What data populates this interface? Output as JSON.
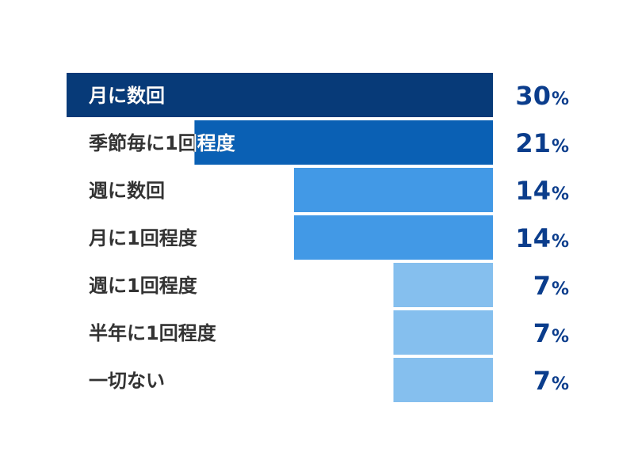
{
  "chart_data": {
    "type": "bar",
    "orientation": "horizontal",
    "categories": [
      "月に数回",
      "季節毎に1回程度",
      "週に数回",
      "月に1回程度",
      "週に1回程度",
      "半年に1回程度",
      "一切ない"
    ],
    "values": [
      30,
      21,
      14,
      14,
      7,
      7,
      7
    ],
    "value_suffix": "%",
    "xlim": [
      0,
      30
    ],
    "grid": false,
    "bar_colors": [
      "#073a78",
      "#0a60b4",
      "#4299e6",
      "#4299e6",
      "#85bfee",
      "#85bfee",
      "#85bfee"
    ],
    "label_color_dark": "#333333",
    "label_color_light": "#ffffff",
    "value_color": "#0b3d8c"
  }
}
